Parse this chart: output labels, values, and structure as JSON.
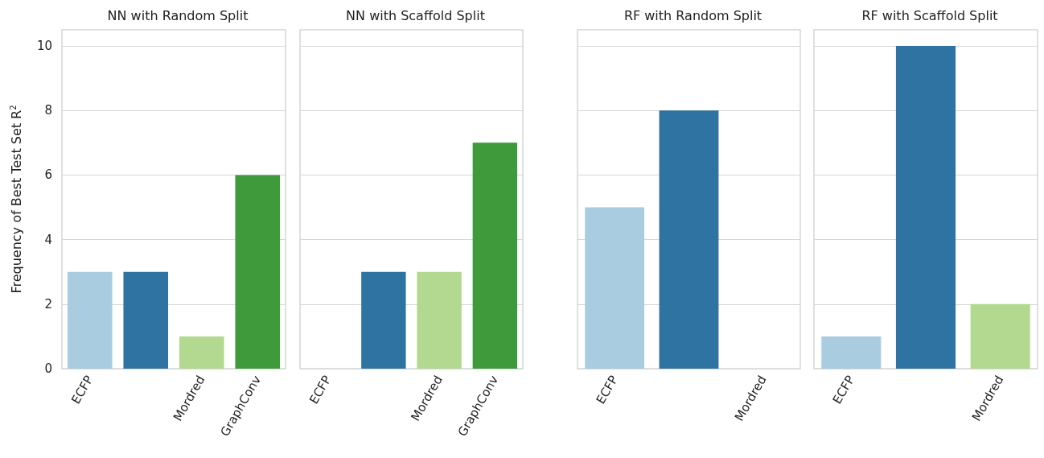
{
  "chart_data": [
    {
      "type": "bar",
      "title": "NN with Random Split",
      "ylabel": "Frequency of Best Test Set R$^{2}$",
      "categories": [
        "ECFP",
        null,
        "Mordred",
        "GraphConv"
      ],
      "values": [
        3,
        3,
        1,
        6
      ],
      "colors": [
        "#a9cce0",
        "#2f73a3",
        "#b2d98f",
        "#3f9a3c"
      ],
      "ylim": [
        0,
        10.5
      ],
      "yticks": [
        0,
        2,
        4,
        6,
        8,
        10
      ],
      "grid": "y"
    },
    {
      "type": "bar",
      "title": "NN with Scaffold Split",
      "categories": [
        "ECFP",
        null,
        "Mordred",
        "GraphConv"
      ],
      "values": [
        0,
        3,
        3,
        7
      ],
      "colors": [
        "#a9cce0",
        "#2f73a3",
        "#b2d98f",
        "#3f9a3c"
      ],
      "ylim": [
        0,
        10.5
      ],
      "yticks": [
        0,
        2,
        4,
        6,
        8,
        10
      ],
      "grid": "y",
      "tick_labels": "x"
    },
    {
      "type": "bar",
      "title": "RF with Random Split",
      "categories": [
        "ECFP",
        null,
        "Mordred"
      ],
      "values": [
        5,
        8,
        0
      ],
      "colors": [
        "#a9cce0",
        "#2f73a3",
        "#b2d98f"
      ],
      "ylim": [
        0,
        10.5
      ],
      "yticks": [
        0,
        2,
        4,
        6,
        8,
        10
      ],
      "grid": "y",
      "tick_labels": "x"
    },
    {
      "type": "bar",
      "title": "RF with Scaffold Split",
      "categories": [
        "ECFP",
        null,
        "Mordred"
      ],
      "values": [
        1,
        10,
        2
      ],
      "colors": [
        "#a9cce0",
        "#2f73a3",
        "#b2d98f"
      ],
      "ylim": [
        0,
        10.5
      ],
      "yticks": [
        0,
        2,
        4,
        6,
        8,
        10
      ],
      "grid": "y",
      "tick_labels": "x"
    }
  ]
}
